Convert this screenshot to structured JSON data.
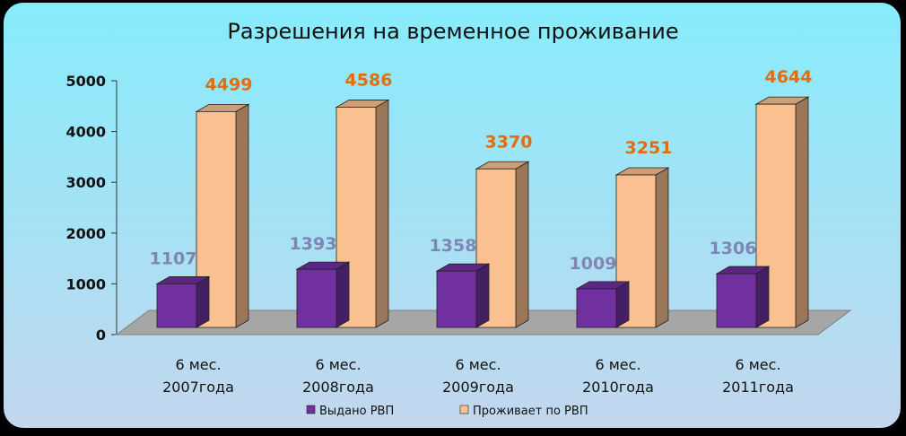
{
  "chart_data": {
    "type": "bar",
    "title": "Разрешения на временное проживание",
    "categories": [
      [
        "6 мес.",
        "2007года"
      ],
      [
        "6 мес.",
        "2008года"
      ],
      [
        "6 мес.",
        "2009года"
      ],
      [
        "6 мес.",
        "2010года"
      ],
      [
        "6 мес.",
        "2011года"
      ]
    ],
    "series": [
      {
        "name": "Выдано РВП",
        "values": [
          1107,
          1393,
          1358,
          1009,
          1306
        ],
        "color": "#7030a0",
        "label_color": "#7f86b6"
      },
      {
        "name": "Проживает по РВП",
        "values": [
          4499,
          4586,
          3370,
          3251,
          4644
        ],
        "color": "#fac090",
        "label_color": "#e46c0a"
      }
    ],
    "yticks": [
      0,
      1000,
      2000,
      3000,
      4000,
      5000
    ],
    "ylim": [
      0,
      5000
    ],
    "legend_position": "bottom",
    "chart_style": "3d-clustered-column",
    "background": {
      "top": "#86ecfb",
      "bottom": "#c3d7ee"
    }
  }
}
